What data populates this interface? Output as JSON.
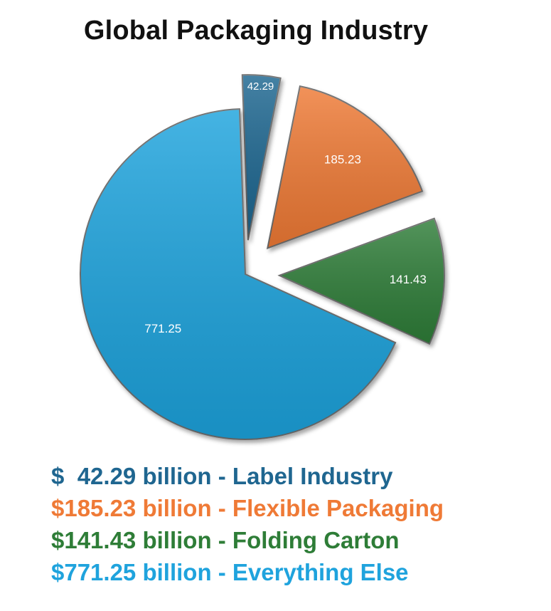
{
  "chart_data": {
    "type": "pie",
    "title": "Global Packaging Industry",
    "slices": [
      {
        "label": "Label Industry",
        "value": 42.29,
        "value_label": "42.29",
        "color": "#1f6690",
        "exploded": true
      },
      {
        "label": "Flexible Packaging",
        "value": 185.23,
        "value_label": "185.23",
        "color": "#ef7a36",
        "exploded": true
      },
      {
        "label": "Folding Carton",
        "value": 141.43,
        "value_label": "141.43",
        "color": "#2e7d37",
        "exploded": true
      },
      {
        "label": "Everything Else",
        "value": 771.25,
        "value_label": "771.25",
        "color": "#1fa3dd",
        "exploded": false
      }
    ]
  },
  "legend": [
    {
      "text": "$  42.29 billion - Label Industry",
      "color": "#1f6690"
    },
    {
      "text": "$185.23 billion - Flexible Packaging",
      "color": "#ef7a36"
    },
    {
      "text": "$141.43 billion - Folding Carton",
      "color": "#2e7d37"
    },
    {
      "text": "$771.25 billion - Everything Else",
      "color": "#1fa3dd"
    }
  ]
}
